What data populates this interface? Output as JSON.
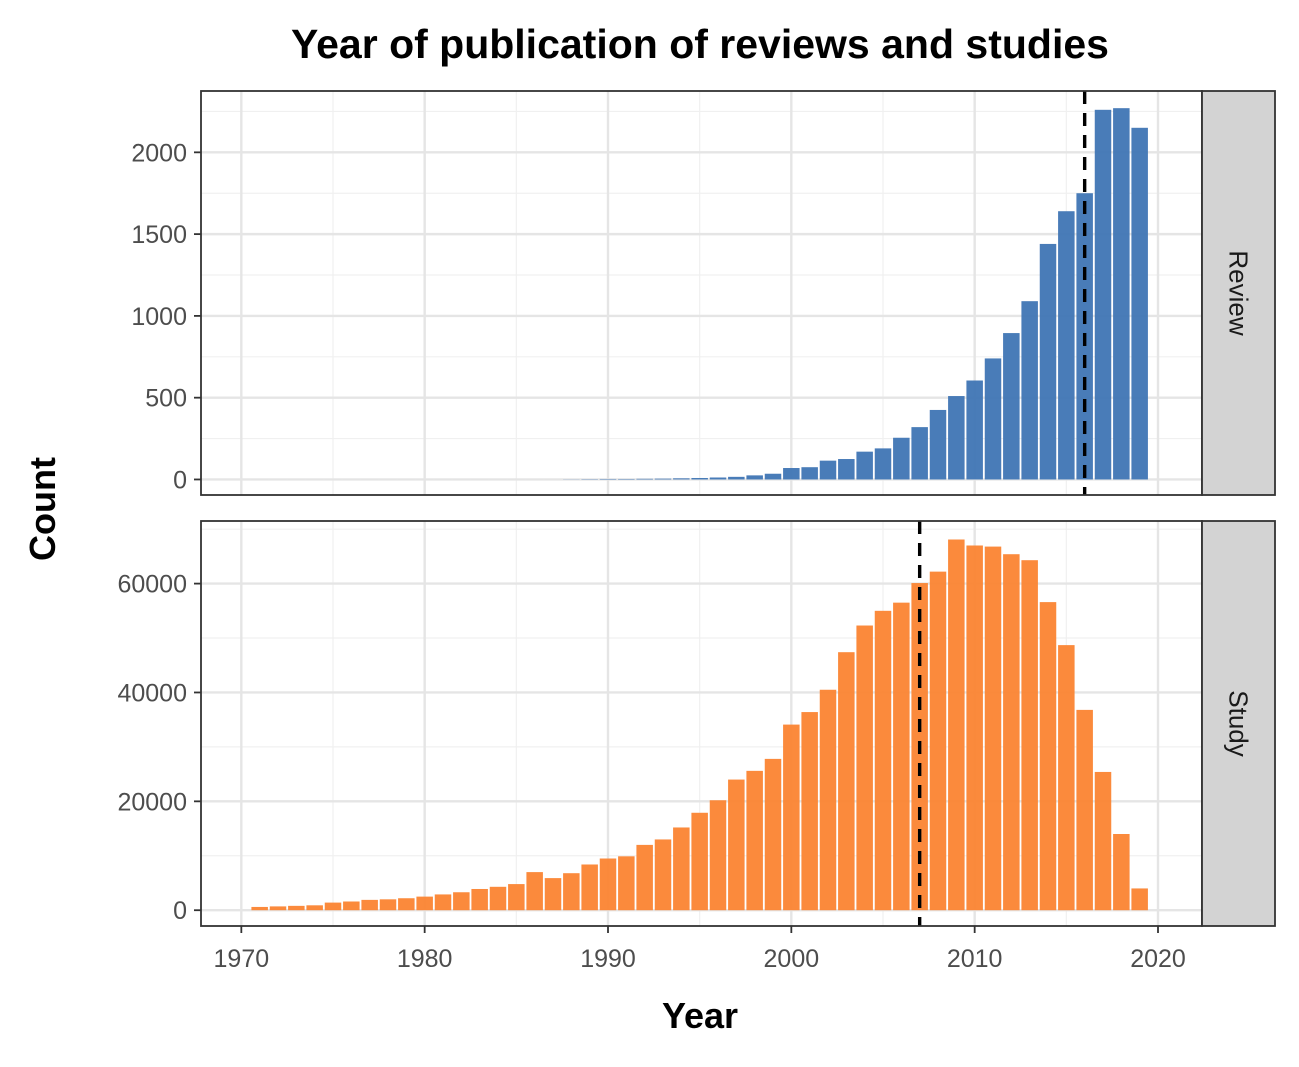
{
  "chart_data": {
    "type": "bar",
    "title": "Year of publication of reviews and studies",
    "xlabel": "Year",
    "ylabel": "Count",
    "xlim": [
      1967.8,
      2022.4
    ],
    "x_ticks": [
      1970,
      1980,
      1990,
      2000,
      2010,
      2020
    ],
    "grid": true,
    "colors": {
      "Review": "#3f75b4",
      "Study": "#fb8431",
      "vline": "#000000",
      "strip": "#d3d3d3"
    },
    "panels": [
      {
        "name": "Review",
        "strip_label": "Review",
        "ylim": [
          -95,
          2375
        ],
        "y_ticks": [
          0,
          500,
          1000,
          1500,
          2000
        ],
        "y_tick_labels": [
          "0",
          "500",
          "1000",
          "1500",
          "2000"
        ],
        "vline_x": 2016,
        "x": [
          1971,
          1972,
          1973,
          1974,
          1975,
          1976,
          1977,
          1978,
          1979,
          1980,
          1981,
          1982,
          1983,
          1984,
          1985,
          1986,
          1987,
          1988,
          1989,
          1990,
          1991,
          1992,
          1993,
          1994,
          1995,
          1996,
          1997,
          1998,
          1999,
          2000,
          2001,
          2002,
          2003,
          2004,
          2005,
          2006,
          2007,
          2008,
          2009,
          2010,
          2011,
          2012,
          2013,
          2014,
          2015,
          2016,
          2017,
          2018,
          2019
        ],
        "values": [
          0,
          0,
          0,
          0,
          0,
          0,
          0,
          0,
          0,
          0,
          0,
          0,
          0,
          0,
          0,
          0,
          0,
          1,
          2,
          3,
          3,
          4,
          5,
          7,
          9,
          12,
          16,
          25,
          35,
          70,
          75,
          115,
          125,
          170,
          190,
          255,
          320,
          425,
          510,
          605,
          740,
          895,
          1090,
          1440,
          1640,
          1750,
          2260,
          2270,
          2150
        ]
      },
      {
        "name": "Study",
        "strip_label": "Study",
        "ylim": [
          -2900,
          71500
        ],
        "y_ticks": [
          0,
          20000,
          40000,
          60000
        ],
        "y_tick_labels": [
          "0",
          "20000",
          "40000",
          "60000"
        ],
        "vline_x": 2007,
        "x": [
          1971,
          1972,
          1973,
          1974,
          1975,
          1976,
          1977,
          1978,
          1979,
          1980,
          1981,
          1982,
          1983,
          1984,
          1985,
          1986,
          1987,
          1988,
          1989,
          1990,
          1991,
          1992,
          1993,
          1994,
          1995,
          1996,
          1997,
          1998,
          1999,
          2000,
          2001,
          2002,
          2003,
          2004,
          2005,
          2006,
          2007,
          2008,
          2009,
          2010,
          2011,
          2012,
          2013,
          2014,
          2015,
          2016,
          2017,
          2018,
          2019
        ],
        "values": [
          600,
          700,
          800,
          900,
          1400,
          1600,
          1900,
          2000,
          2200,
          2500,
          2900,
          3300,
          3900,
          4300,
          4800,
          7000,
          5900,
          6800,
          8400,
          9500,
          9900,
          12000,
          13000,
          15200,
          17900,
          20200,
          24000,
          25600,
          27800,
          34100,
          36400,
          40500,
          47400,
          52300,
          55000,
          56500,
          60100,
          62200,
          68100,
          67000,
          66800,
          65400,
          64300,
          56600,
          48700,
          36800,
          25400,
          14000,
          4000
        ]
      }
    ]
  }
}
